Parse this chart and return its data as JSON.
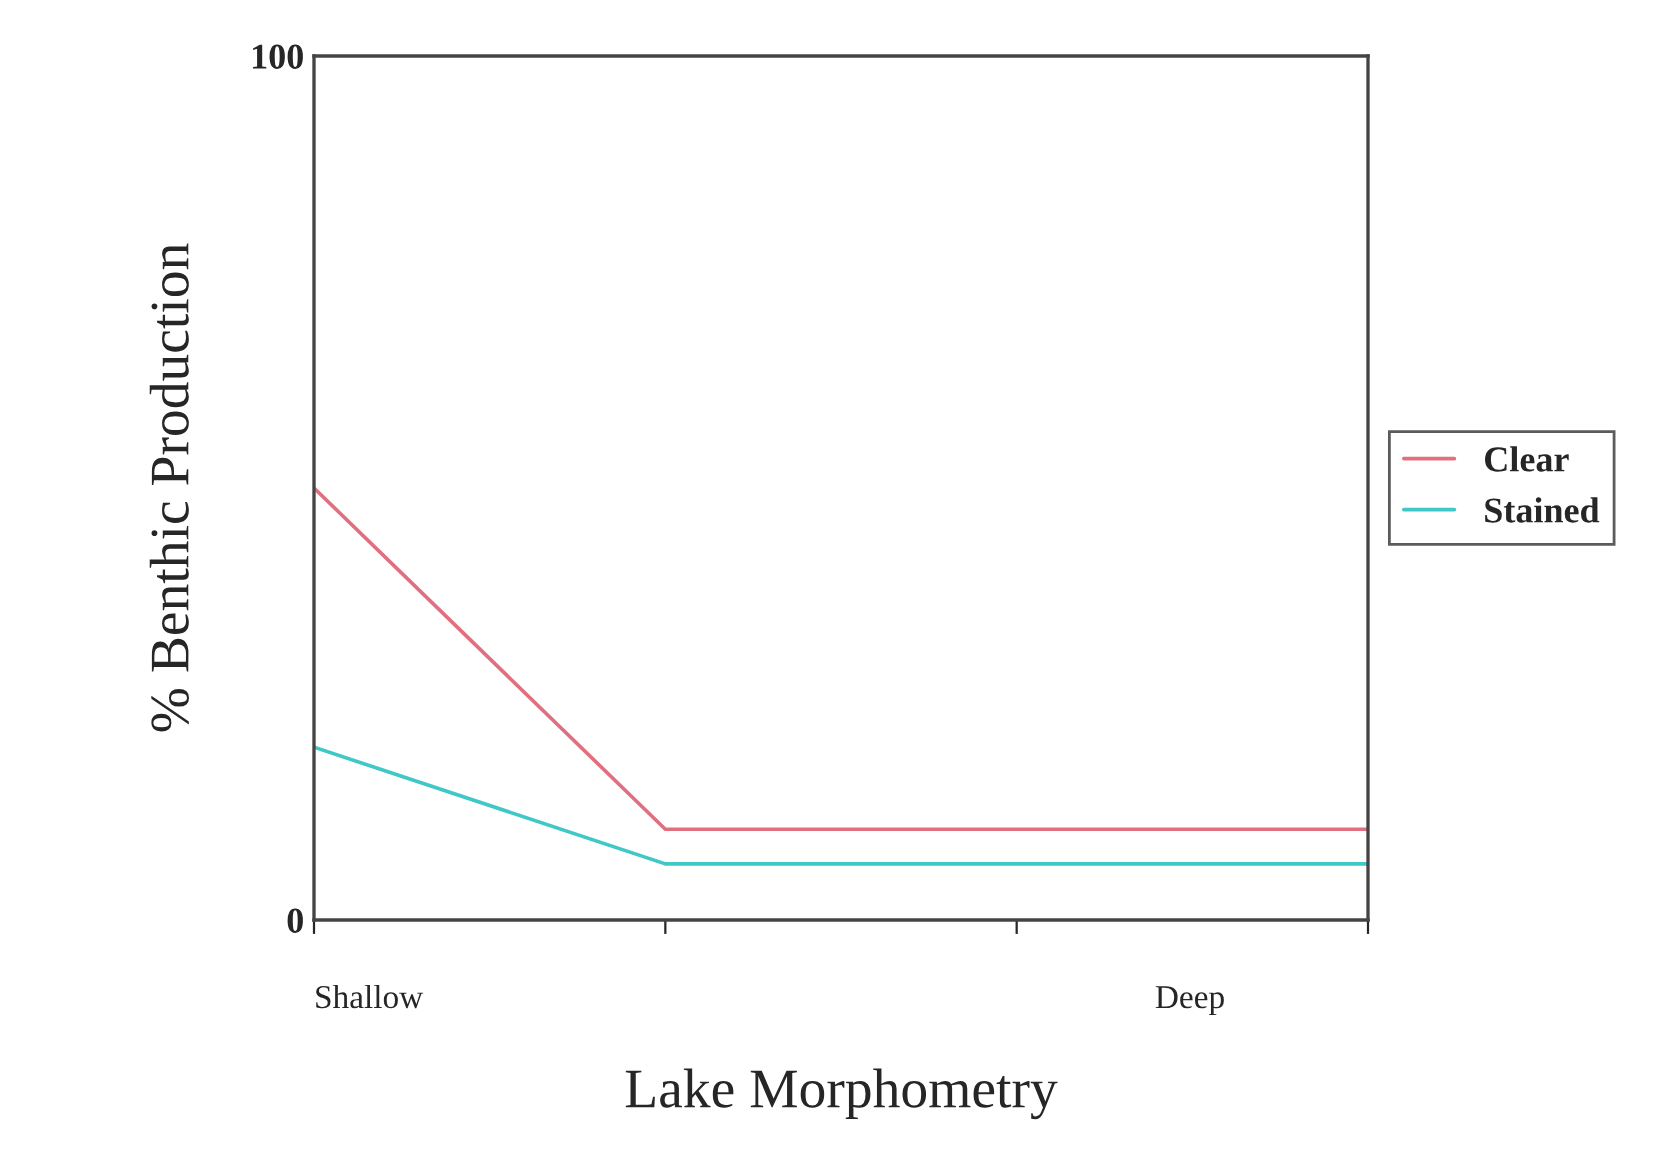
{
  "chart_data": {
    "type": "line",
    "xlabel": "Lake Morphometry",
    "ylabel": "% Benthic Production",
    "categories": [
      null,
      null,
      null,
      null
    ],
    "series": [
      {
        "name": "Clear",
        "color": "#e07080",
        "values": [
          50,
          10.5,
          10.5,
          10.5
        ]
      },
      {
        "name": "Stained",
        "color": "#40c8c8",
        "values": [
          20,
          6.5,
          6.5,
          6.5
        ]
      }
    ],
    "ylim": [
      0,
      100
    ],
    "yticks": [
      0,
      100
    ],
    "annotations": [
      "Shallow",
      "Deep"
    ],
    "legend": "right",
    "grid": false,
    "line_style": "solid",
    "marker": "none"
  }
}
